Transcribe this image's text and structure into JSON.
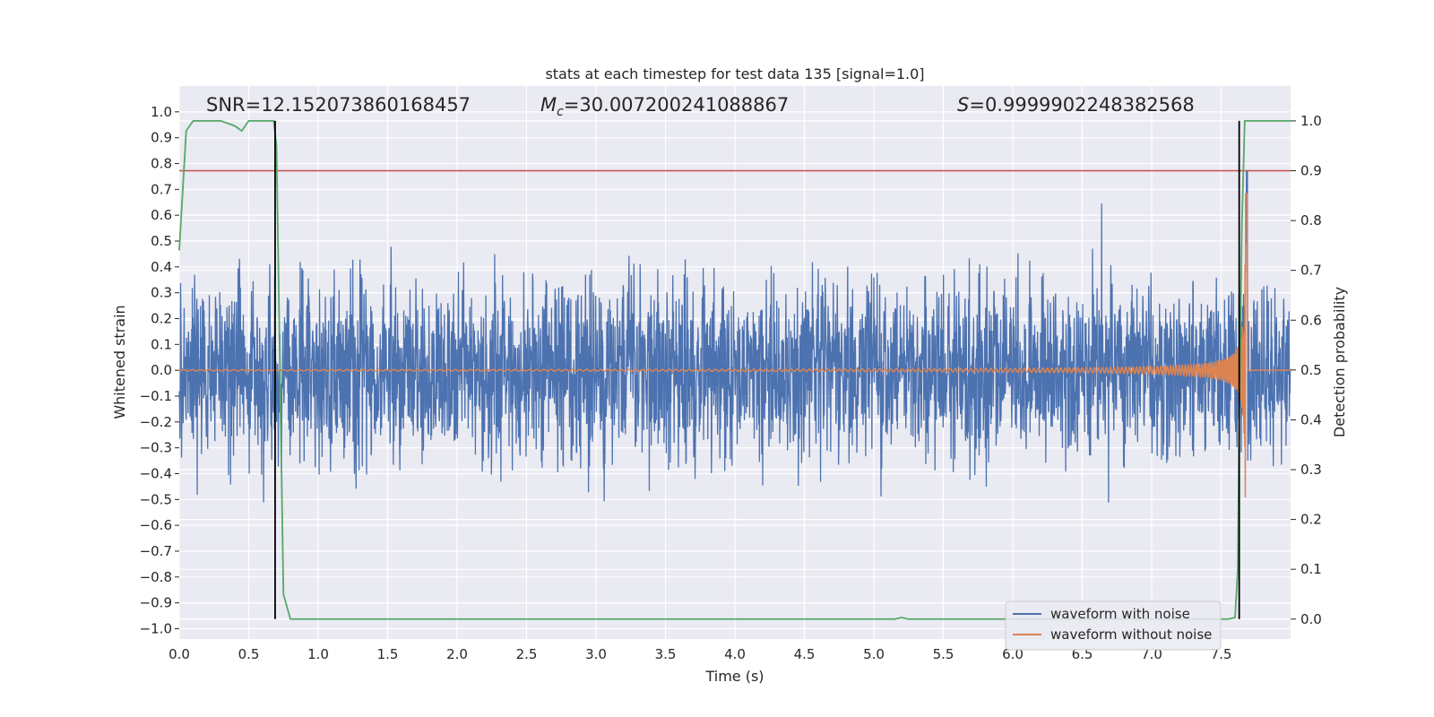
{
  "chart_data": {
    "type": "line",
    "title": "stats at each timestep for test data 135 [signal=1.0]",
    "xlabel": "Time (s)",
    "ylabel": "Whitened strain",
    "y2label": "Detection probability",
    "xlim": [
      0.0,
      8.0
    ],
    "ylim": [
      -1.04,
      1.1
    ],
    "y2lim": [
      -0.04,
      1.07
    ],
    "x_ticks": [
      0.0,
      0.5,
      1.0,
      1.5,
      2.0,
      2.5,
      3.0,
      3.5,
      4.0,
      4.5,
      5.0,
      5.5,
      6.0,
      6.5,
      7.0,
      7.5
    ],
    "x_tick_labels": [
      "0.0",
      "0.5",
      "1.0",
      "1.5",
      "2.0",
      "2.5",
      "3.0",
      "3.5",
      "4.0",
      "4.5",
      "5.0",
      "5.5",
      "6.0",
      "6.5",
      "7.0",
      "7.5"
    ],
    "y_ticks": [
      1.0,
      0.9,
      0.8,
      0.7,
      0.6,
      0.5,
      0.4,
      0.3,
      0.2,
      0.1,
      0.0,
      -0.1,
      -0.2,
      -0.3,
      -0.4,
      -0.5,
      -0.6,
      -0.7,
      -0.8,
      -0.9,
      -1.0
    ],
    "y_tick_labels": [
      "1.0",
      "0.9",
      "0.8",
      "0.7",
      "0.6",
      "0.5",
      "0.4",
      "0.3",
      "0.2",
      "0.1",
      "0.0",
      "−0.1",
      "−0.2",
      "−0.3",
      "−0.4",
      "−0.5",
      "−0.6",
      "−0.7",
      "−0.8",
      "−0.9",
      "−1.0"
    ],
    "y2_ticks": [
      1.0,
      0.9,
      0.8,
      0.7,
      0.6,
      0.5,
      0.4,
      0.3,
      0.2,
      0.1,
      0.0
    ],
    "y2_tick_labels": [
      "1.0",
      "0.9",
      "0.8",
      "0.7",
      "0.6",
      "0.5",
      "0.4",
      "0.3",
      "0.2",
      "0.1",
      "0.0"
    ],
    "annotations": {
      "snr": "SNR=12.152073860168457",
      "mc_symbol": "M",
      "mc_sub": "c",
      "mc_value": "=30.007200241088867",
      "s_symbol": "S",
      "s_value": "=0.9999902248382568"
    },
    "series": [
      {
        "name": "waveform with noise",
        "color": "#4c72b0",
        "axis": "left",
        "style": "dense-noise",
        "envelope_min": -0.82,
        "envelope_max": 0.77
      },
      {
        "name": "waveform without noise",
        "color": "#dd8452",
        "axis": "left",
        "style": "chirp",
        "merger_time": 7.68,
        "peak_amplitude": 0.75
      },
      {
        "name": "detection probability",
        "color": "#55a868",
        "axis": "right",
        "show_in_legend": false,
        "x": [
          0.0,
          0.05,
          0.1,
          0.2,
          0.3,
          0.4,
          0.45,
          0.5,
          0.55,
          0.6,
          0.68,
          0.7,
          0.75,
          0.8,
          1.0,
          2.0,
          3.0,
          4.0,
          5.0,
          5.15,
          5.2,
          5.25,
          5.5,
          6.0,
          7.0,
          7.55,
          7.6,
          7.62,
          7.63,
          7.65,
          7.67,
          7.7,
          8.0
        ],
        "y": [
          0.74,
          0.98,
          1.0,
          1.0,
          1.0,
          0.99,
          0.98,
          1.0,
          1.0,
          1.0,
          1.0,
          0.95,
          0.05,
          0.0,
          0.0,
          0.0,
          0.0,
          0.0,
          0.0,
          0.0,
          0.003,
          0.0,
          0.0,
          0.0,
          0.0,
          0.0,
          0.003,
          0.1,
          0.4,
          0.8,
          1.0,
          1.0,
          1.0
        ]
      },
      {
        "name": "threshold",
        "color": "#c44e52",
        "axis": "right",
        "show_in_legend": false,
        "constant": 0.9
      }
    ],
    "vertical_markers": [
      0.69,
      7.63
    ],
    "legend_position": "lower-right",
    "legend_entries": [
      "waveform with noise",
      "waveform without noise"
    ],
    "grid": true
  }
}
